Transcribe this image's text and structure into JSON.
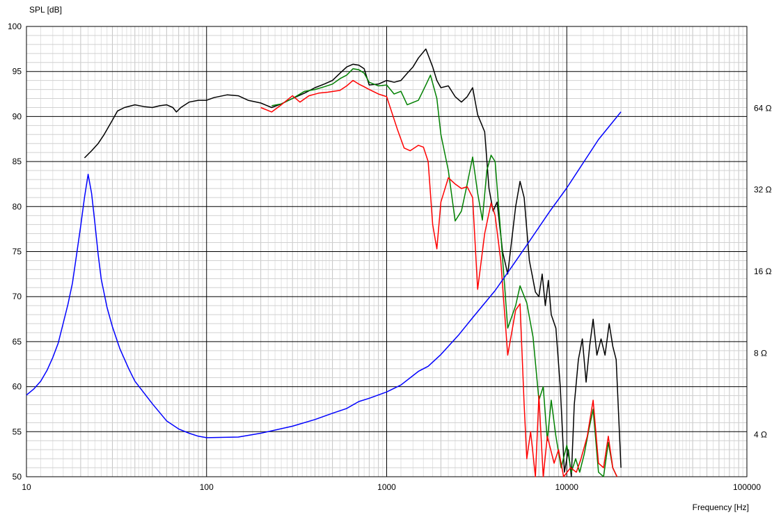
{
  "chart_data": {
    "type": "line",
    "xlabel": "Frequency [Hz]",
    "ylabel": "SPL [dB]",
    "x_scale": "log",
    "xlim": [
      10,
      100000
    ],
    "ylim": [
      50,
      100
    ],
    "y2_scale": "log",
    "y2lim": [
      2.8,
      128
    ],
    "grid": true,
    "x_ticks": [
      {
        "value": 10,
        "label": "10"
      },
      {
        "value": 100,
        "label": "100"
      },
      {
        "value": 1000,
        "label": "1000"
      },
      {
        "value": 10000,
        "label": "10000"
      },
      {
        "value": 100000,
        "label": "100000"
      }
    ],
    "y_ticks": [
      {
        "value": 100,
        "label": "100"
      },
      {
        "value": 95,
        "label": "95"
      },
      {
        "value": 90,
        "label": "90"
      },
      {
        "value": 85,
        "label": "85"
      },
      {
        "value": 80,
        "label": "80"
      },
      {
        "value": 75,
        "label": "75"
      },
      {
        "value": 70,
        "label": "70"
      },
      {
        "value": 65,
        "label": "65"
      },
      {
        "value": 60,
        "label": "60"
      },
      {
        "value": 55,
        "label": "55"
      },
      {
        "value": 50,
        "label": "50"
      }
    ],
    "y2_ticks": [
      {
        "value": 64,
        "label": "64 Ω"
      },
      {
        "value": 32,
        "label": "32 Ω"
      },
      {
        "value": 16,
        "label": "16 Ω"
      },
      {
        "value": 8,
        "label": "8 Ω"
      },
      {
        "value": 4,
        "label": "4 Ω"
      }
    ],
    "series": [
      {
        "color": "#000000",
        "axis": "left",
        "points": [
          [
            21,
            85.4
          ],
          [
            23,
            86.2
          ],
          [
            25,
            87.0
          ],
          [
            27,
            88.0
          ],
          [
            30,
            89.6
          ],
          [
            32,
            90.6
          ],
          [
            35,
            91.0
          ],
          [
            40,
            91.3
          ],
          [
            45,
            91.1
          ],
          [
            50,
            91.0
          ],
          [
            55,
            91.2
          ],
          [
            60,
            91.3
          ],
          [
            65,
            91.0
          ],
          [
            68,
            90.5
          ],
          [
            72,
            91.0
          ],
          [
            80,
            91.6
          ],
          [
            90,
            91.8
          ],
          [
            100,
            91.8
          ],
          [
            110,
            92.1
          ],
          [
            130,
            92.4
          ],
          [
            150,
            92.3
          ],
          [
            170,
            91.8
          ],
          [
            200,
            91.5
          ],
          [
            230,
            91.0
          ],
          [
            260,
            91.4
          ],
          [
            300,
            92.0
          ],
          [
            350,
            92.6
          ],
          [
            400,
            93.2
          ],
          [
            450,
            93.6
          ],
          [
            500,
            94.0
          ],
          [
            550,
            94.8
          ],
          [
            600,
            95.5
          ],
          [
            650,
            95.8
          ],
          [
            700,
            95.7
          ],
          [
            750,
            95.3
          ],
          [
            800,
            93.5
          ],
          [
            900,
            93.6
          ],
          [
            1000,
            94.0
          ],
          [
            1100,
            93.8
          ],
          [
            1200,
            94.0
          ],
          [
            1300,
            94.8
          ],
          [
            1400,
            95.5
          ],
          [
            1500,
            96.5
          ],
          [
            1650,
            97.5
          ],
          [
            1800,
            95.5
          ],
          [
            1900,
            94.0
          ],
          [
            2000,
            93.2
          ],
          [
            2200,
            93.4
          ],
          [
            2400,
            92.2
          ],
          [
            2600,
            91.6
          ],
          [
            2800,
            92.2
          ],
          [
            3000,
            93.2
          ],
          [
            3200,
            90.2
          ],
          [
            3500,
            88.3
          ],
          [
            3700,
            82.0
          ],
          [
            3900,
            79.5
          ],
          [
            4100,
            80.5
          ],
          [
            4400,
            75.0
          ],
          [
            4700,
            72.5
          ],
          [
            5200,
            80.0
          ],
          [
            5500,
            82.8
          ],
          [
            5800,
            81.0
          ],
          [
            6200,
            74.0
          ],
          [
            6700,
            70.5
          ],
          [
            7000,
            70.0
          ],
          [
            7300,
            72.5
          ],
          [
            7600,
            69.0
          ],
          [
            7900,
            71.8
          ],
          [
            8200,
            68.0
          ],
          [
            8700,
            66.5
          ],
          [
            9200,
            60.0
          ],
          [
            9700,
            50.5
          ],
          [
            10200,
            53.0
          ],
          [
            10600,
            50.0
          ],
          [
            11000,
            58.0
          ],
          [
            11600,
            63.0
          ],
          [
            12200,
            65.3
          ],
          [
            12800,
            60.5
          ],
          [
            13400,
            64.5
          ],
          [
            14000,
            67.5
          ],
          [
            14700,
            63.5
          ],
          [
            15500,
            65.3
          ],
          [
            16300,
            63.5
          ],
          [
            17200,
            67.0
          ],
          [
            18000,
            64.5
          ],
          [
            18800,
            63.0
          ],
          [
            20000,
            51.0
          ]
        ]
      },
      {
        "color": "#008000",
        "axis": "left",
        "points": [
          [
            230,
            91.2
          ],
          [
            260,
            91.4
          ],
          [
            300,
            92.0
          ],
          [
            350,
            92.8
          ],
          [
            400,
            93.0
          ],
          [
            450,
            93.3
          ],
          [
            500,
            93.6
          ],
          [
            550,
            94.2
          ],
          [
            600,
            94.6
          ],
          [
            650,
            95.3
          ],
          [
            700,
            95.2
          ],
          [
            750,
            94.8
          ],
          [
            800,
            93.8
          ],
          [
            900,
            93.4
          ],
          [
            1000,
            93.5
          ],
          [
            1100,
            92.5
          ],
          [
            1200,
            92.8
          ],
          [
            1300,
            91.3
          ],
          [
            1500,
            91.8
          ],
          [
            1650,
            93.5
          ],
          [
            1750,
            94.6
          ],
          [
            1900,
            92.0
          ],
          [
            2000,
            88.0
          ],
          [
            2200,
            84.0
          ],
          [
            2400,
            78.4
          ],
          [
            2600,
            79.5
          ],
          [
            2800,
            82.5
          ],
          [
            3000,
            85.5
          ],
          [
            3200,
            81.5
          ],
          [
            3400,
            78.5
          ],
          [
            3600,
            84.0
          ],
          [
            3800,
            85.7
          ],
          [
            4000,
            85.0
          ],
          [
            4300,
            77.0
          ],
          [
            4700,
            66.5
          ],
          [
            5200,
            69.0
          ],
          [
            5500,
            71.2
          ],
          [
            6000,
            69.3
          ],
          [
            6500,
            65.5
          ],
          [
            7000,
            58.5
          ],
          [
            7400,
            60.0
          ],
          [
            7800,
            54.0
          ],
          [
            8200,
            58.5
          ],
          [
            8700,
            54.5
          ],
          [
            9300,
            51.0
          ],
          [
            10000,
            53.5
          ],
          [
            10600,
            50.5
          ],
          [
            11200,
            52.0
          ],
          [
            11800,
            50.5
          ],
          [
            12500,
            52.5
          ],
          [
            13200,
            55.0
          ],
          [
            14000,
            57.5
          ],
          [
            15000,
            50.5
          ],
          [
            16000,
            50.0
          ],
          [
            17000,
            53.8
          ],
          [
            18000,
            51.0
          ],
          [
            19000,
            50.0
          ]
        ]
      },
      {
        "color": "#ff0000",
        "axis": "left",
        "points": [
          [
            200,
            91.0
          ],
          [
            230,
            90.5
          ],
          [
            260,
            91.3
          ],
          [
            300,
            92.3
          ],
          [
            330,
            91.6
          ],
          [
            370,
            92.3
          ],
          [
            420,
            92.6
          ],
          [
            470,
            92.7
          ],
          [
            550,
            92.9
          ],
          [
            600,
            93.4
          ],
          [
            650,
            94.0
          ],
          [
            700,
            93.6
          ],
          [
            750,
            93.3
          ],
          [
            800,
            93.0
          ],
          [
            900,
            92.5
          ],
          [
            1000,
            92.2
          ],
          [
            1150,
            88.5
          ],
          [
            1250,
            86.5
          ],
          [
            1350,
            86.2
          ],
          [
            1500,
            86.8
          ],
          [
            1600,
            86.6
          ],
          [
            1700,
            85.0
          ],
          [
            1800,
            78.0
          ],
          [
            1900,
            75.3
          ],
          [
            2000,
            80.5
          ],
          [
            2200,
            83.2
          ],
          [
            2400,
            82.5
          ],
          [
            2600,
            82.0
          ],
          [
            2800,
            82.2
          ],
          [
            3000,
            81.0
          ],
          [
            3200,
            70.8
          ],
          [
            3500,
            77.0
          ],
          [
            3800,
            80.4
          ],
          [
            4000,
            79.0
          ],
          [
            4300,
            74.0
          ],
          [
            4700,
            63.5
          ],
          [
            5200,
            68.5
          ],
          [
            5500,
            69.2
          ],
          [
            5800,
            58.0
          ],
          [
            6000,
            52.0
          ],
          [
            6300,
            55.0
          ],
          [
            6700,
            50.0
          ],
          [
            7000,
            59.0
          ],
          [
            7400,
            50.0
          ],
          [
            7800,
            54.5
          ],
          [
            8500,
            51.5
          ],
          [
            9000,
            53.0
          ],
          [
            9600,
            50.0
          ],
          [
            10500,
            51.0
          ],
          [
            11300,
            50.5
          ],
          [
            12000,
            52.0
          ],
          [
            13000,
            54.5
          ],
          [
            14000,
            58.5
          ],
          [
            15000,
            51.5
          ],
          [
            16000,
            51.0
          ],
          [
            17000,
            54.5
          ],
          [
            18000,
            51.0
          ],
          [
            19000,
            50.0
          ]
        ]
      },
      {
        "color": "#0000ff",
        "axis": "right",
        "points": [
          [
            10,
            5.6
          ],
          [
            11,
            5.9
          ],
          [
            12,
            6.3
          ],
          [
            13,
            6.9
          ],
          [
            14,
            7.7
          ],
          [
            15,
            8.7
          ],
          [
            16,
            10.3
          ],
          [
            17,
            12.1
          ],
          [
            18,
            14.5
          ],
          [
            19,
            18.5
          ],
          [
            20,
            23.5
          ],
          [
            21,
            30.0
          ],
          [
            22,
            36.5
          ],
          [
            23,
            31.0
          ],
          [
            24,
            24.0
          ],
          [
            25,
            18.5
          ],
          [
            26,
            15.0
          ],
          [
            28,
            11.8
          ],
          [
            30,
            10.0
          ],
          [
            33,
            8.3
          ],
          [
            37,
            7.0
          ],
          [
            40,
            6.3
          ],
          [
            50,
            5.2
          ],
          [
            60,
            4.5
          ],
          [
            70,
            4.2
          ],
          [
            80,
            4.05
          ],
          [
            90,
            3.95
          ],
          [
            100,
            3.9
          ],
          [
            150,
            3.92
          ],
          [
            200,
            4.05
          ],
          [
            300,
            4.3
          ],
          [
            400,
            4.55
          ],
          [
            500,
            4.8
          ],
          [
            600,
            5.0
          ],
          [
            700,
            5.3
          ],
          [
            800,
            5.45
          ],
          [
            1000,
            5.75
          ],
          [
            1200,
            6.1
          ],
          [
            1500,
            6.85
          ],
          [
            1700,
            7.15
          ],
          [
            2000,
            7.9
          ],
          [
            2500,
            9.3
          ],
          [
            3000,
            10.8
          ],
          [
            4000,
            13.6
          ],
          [
            5000,
            16.8
          ],
          [
            6000,
            20.0
          ],
          [
            8000,
            26.5
          ],
          [
            10000,
            32.5
          ],
          [
            15000,
            49.0
          ],
          [
            20000,
            62.0
          ]
        ]
      }
    ]
  }
}
